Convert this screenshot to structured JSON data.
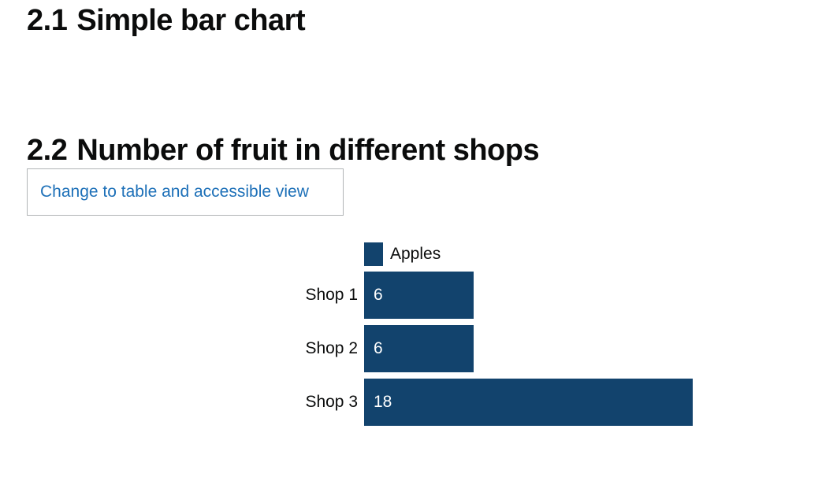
{
  "headings": {
    "section1_num": "2.1",
    "section1_title": "Simple bar chart",
    "section2_num": "2.2",
    "section2_title": "Number of fruit in different shops"
  },
  "toggle_button": {
    "label": "Change to table and accessible view"
  },
  "colors": {
    "bar": "#12436d",
    "link": "#1d70b8",
    "text": "#0b0c0c"
  },
  "chart_data": {
    "type": "bar",
    "orientation": "horizontal",
    "title": "Number of fruit in different shops",
    "categories": [
      "Shop 1",
      "Shop 2",
      "Shop 3"
    ],
    "series": [
      {
        "name": "Apples",
        "values": [
          6,
          6,
          18
        ]
      }
    ],
    "value_labels": [
      "6",
      "6",
      "18"
    ],
    "legend_position": "top-left",
    "grid": false
  }
}
